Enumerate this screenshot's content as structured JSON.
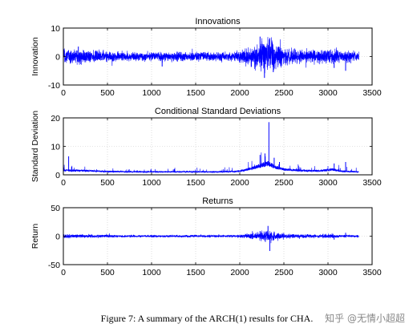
{
  "chart_data": [
    {
      "type": "line",
      "title": "Innovations",
      "xlabel": "",
      "ylabel": "Innovation",
      "xlim": [
        0,
        3500
      ],
      "ylim": [
        -10,
        10
      ],
      "xticks": [
        0,
        500,
        1000,
        1500,
        2000,
        2500,
        3000,
        3500
      ],
      "yticks": [
        -10,
        0,
        10
      ],
      "grid": true,
      "color": "#0000ff",
      "n_points": 3350,
      "profile": {
        "note": "amplitude envelope vs x (data units)",
        "x": [
          0,
          200,
          500,
          900,
          1300,
          1700,
          1950,
          2050,
          2150,
          2250,
          2330,
          2400,
          2500,
          2700,
          2900,
          3050,
          3150,
          3350
        ],
        "y": [
          1.8,
          1.6,
          1.2,
          1.0,
          1.1,
          1.0,
          1.2,
          1.6,
          2.6,
          3.6,
          4.2,
          3.0,
          2.0,
          1.6,
          1.5,
          2.0,
          1.3,
          1.0
        ]
      },
      "spikes": [
        {
          "x": 2230,
          "y": 7.0
        },
        {
          "x": 2280,
          "y": -7.5
        },
        {
          "x": 2340,
          "y": 6.5
        },
        {
          "x": 2380,
          "y": -5.5
        },
        {
          "x": 3070,
          "y": -4.0
        },
        {
          "x": 3200,
          "y": -5.0
        },
        {
          "x": 170,
          "y": 3.5
        },
        {
          "x": 1120,
          "y": -3.5
        }
      ]
    },
    {
      "type": "line",
      "title": "Conditional Standard Deviations",
      "xlabel": "",
      "ylabel": "Standard Deviation",
      "xlim": [
        0,
        3500
      ],
      "ylim": [
        0,
        20
      ],
      "xticks": [
        0,
        500,
        1000,
        1500,
        2000,
        2500,
        3000,
        3500
      ],
      "yticks": [
        0,
        10,
        20
      ],
      "grid": true,
      "color": "#0000ff",
      "n_points": 3350,
      "profile": {
        "note": "baseline level vs x (data units)",
        "x": [
          0,
          200,
          500,
          900,
          1300,
          1700,
          1950,
          2050,
          2150,
          2250,
          2330,
          2400,
          2500,
          2700,
          2900,
          3050,
          3150,
          3350
        ],
        "y": [
          1.5,
          1.4,
          1.1,
          1.0,
          1.0,
          1.0,
          1.1,
          1.5,
          2.3,
          3.2,
          3.8,
          2.6,
          1.8,
          1.4,
          1.3,
          1.8,
          1.2,
          1.0
        ]
      },
      "spikes": [
        {
          "x": 60,
          "y": 6.5
        },
        {
          "x": 2230,
          "y": 7.0
        },
        {
          "x": 2285,
          "y": 7.5
        },
        {
          "x": 2330,
          "y": 18.5
        },
        {
          "x": 2390,
          "y": 6.0
        },
        {
          "x": 2450,
          "y": 4.5
        },
        {
          "x": 3070,
          "y": 4.0
        },
        {
          "x": 3200,
          "y": 4.5
        }
      ]
    },
    {
      "type": "line",
      "title": "Returns",
      "xlabel": "",
      "ylabel": "Return",
      "xlim": [
        0,
        3500
      ],
      "ylim": [
        -50,
        50
      ],
      "xticks": [
        0,
        500,
        1000,
        1500,
        2000,
        2500,
        3000,
        3500
      ],
      "yticks": [
        -50,
        0,
        50
      ],
      "grid": true,
      "color": "#0000ff",
      "n_points": 3350,
      "profile": {
        "note": "amplitude envelope vs x (data units)",
        "x": [
          0,
          200,
          500,
          900,
          1300,
          1700,
          1950,
          2050,
          2150,
          2250,
          2330,
          2400,
          2500,
          2700,
          2900,
          3050,
          3150,
          3350
        ],
        "y": [
          2.2,
          2.0,
          1.6,
          1.3,
          1.4,
          1.3,
          1.6,
          2.4,
          3.8,
          5.2,
          6.5,
          4.5,
          3.0,
          2.2,
          2.0,
          2.6,
          1.7,
          1.3
        ]
      },
      "spikes": [
        {
          "x": 2230,
          "y": 9.0
        },
        {
          "x": 2290,
          "y": -10.0
        },
        {
          "x": 2320,
          "y": 18.0
        },
        {
          "x": 2340,
          "y": -26.0
        },
        {
          "x": 2390,
          "y": 8.0
        },
        {
          "x": 3070,
          "y": -6.0
        },
        {
          "x": 3200,
          "y": 6.0
        }
      ]
    }
  ],
  "caption": "Figure 7: A summary of the ARCH(1) results for CHA.",
  "watermark": "知乎 @无情小超超"
}
